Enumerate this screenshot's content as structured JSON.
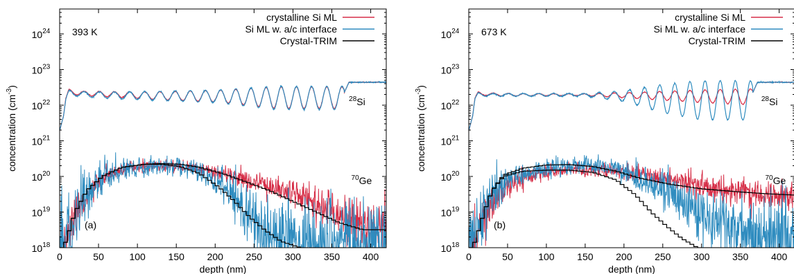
{
  "chart_data": [
    {
      "type": "line",
      "panel_label": "(a)",
      "temperature_label": "393 K",
      "xlabel": "depth (nm)",
      "ylabel_main": "concentration (cm",
      "ylabel_sup": "-3",
      "ylabel_end": ")",
      "xlim": [
        0,
        420
      ],
      "ylim": [
        1e+18,
        5e+24
      ],
      "yscale": "log",
      "x_ticks": [
        0,
        50,
        100,
        150,
        200,
        250,
        300,
        350,
        400
      ],
      "y_ticks": [
        {
          "value": 1e+18,
          "base": "10",
          "exp": "18"
        },
        {
          "value": 1e+19,
          "base": "10",
          "exp": "19"
        },
        {
          "value": 1e+20,
          "base": "10",
          "exp": "20"
        },
        {
          "value": 1e+21,
          "base": "10",
          "exp": "21"
        },
        {
          "value": 1e+22,
          "base": "10",
          "exp": "22"
        },
        {
          "value": 1e+23,
          "base": "10",
          "exp": "23"
        },
        {
          "value": 1e+24,
          "base": "10",
          "exp": "24"
        }
      ],
      "annotations": [
        {
          "sup": "28",
          "text": "Si",
          "x": 372,
          "y": 1.3e+22
        },
        {
          "sup": "70",
          "text": "Ge",
          "x": 375,
          "y": 8e+19
        }
      ],
      "legend_position": "top-right",
      "series": [
        {
          "name": "crystalline Si ML",
          "color": "#d62f48",
          "noise": 0.12,
          "points": [
            [
              0,
              1.9e+21
            ],
            [
              5,
              5e+21
            ],
            [
              8,
              1.6e+22
            ],
            [
              12,
              2.6e+22
            ],
            [
              20,
              2.3e+22
            ],
            [
              40,
              2.2e+22
            ],
            [
              80,
              2.1e+22
            ],
            [
              120,
              2e+22
            ],
            [
              160,
              2e+22
            ],
            [
              200,
              2e+22
            ],
            [
              240,
              2e+22
            ],
            [
              280,
              2e+22
            ],
            [
              320,
              2e+22
            ],
            [
              365,
              2e+22
            ],
            [
              372,
              4.4e+22
            ],
            [
              420,
              4.4e+22
            ]
          ],
          "osc_period": 19.5,
          "osc_amp": [
            [
              10,
              0.1
            ],
            [
              100,
              0.18
            ],
            [
              200,
              0.32
            ],
            [
              280,
              0.6
            ],
            [
              365,
              0.6
            ]
          ],
          "ge_points": [
            [
              0,
              5e+17
            ],
            [
              10,
              2e+18
            ],
            [
              20,
              1e+19
            ],
            [
              40,
              4e+19
            ],
            [
              60,
              1e+20
            ],
            [
              90,
              1.7e+20
            ],
            [
              120,
              2e+20
            ],
            [
              150,
              1.95e+20
            ],
            [
              180,
              1.6e+20
            ],
            [
              210,
              1.2e+20
            ],
            [
              250,
              7e+19
            ],
            [
              290,
              4e+19
            ],
            [
              330,
              1.8e+19
            ],
            [
              370,
              7e+18
            ],
            [
              400,
              4e+18
            ],
            [
              420,
              3e+18
            ]
          ]
        },
        {
          "name": "Si ML w. a/c interface",
          "color": "#2f8cbf",
          "noise": 0.18,
          "points": [
            [
              0,
              1.9e+21
            ],
            [
              5,
              5e+21
            ],
            [
              8,
              1.5e+22
            ],
            [
              12,
              2.4e+22
            ],
            [
              20,
              2.2e+22
            ],
            [
              40,
              2.1e+22
            ],
            [
              80,
              2e+22
            ],
            [
              120,
              2e+22
            ],
            [
              160,
              2e+22
            ],
            [
              200,
              2e+22
            ],
            [
              240,
              2e+22
            ],
            [
              280,
              2e+22
            ],
            [
              320,
              2e+22
            ],
            [
              365,
              2e+22
            ],
            [
              372,
              4.4e+22
            ],
            [
              420,
              4.4e+22
            ]
          ],
          "osc_period": 19.5,
          "osc_amp": [
            [
              10,
              0.12
            ],
            [
              100,
              0.22
            ],
            [
              200,
              0.35
            ],
            [
              280,
              0.65
            ],
            [
              365,
              0.65
            ]
          ],
          "ge_points": [
            [
              0,
              5e+17
            ],
            [
              10,
              2e+18
            ],
            [
              20,
              1e+19
            ],
            [
              40,
              4e+19
            ],
            [
              60,
              1e+20
            ],
            [
              90,
              1.7e+20
            ],
            [
              120,
              2e+20
            ],
            [
              150,
              1.9e+20
            ],
            [
              180,
              1.3e+20
            ],
            [
              200,
              7e+19
            ],
            [
              220,
              3e+19
            ],
            [
              240,
              1.2e+19
            ],
            [
              260,
              3e+18
            ],
            [
              290,
              1.5e+18
            ],
            [
              320,
              1.2e+18
            ],
            [
              360,
              1.1e+18
            ],
            [
              420,
              1e+18
            ]
          ]
        },
        {
          "name": "Crystal-TRIM",
          "color": "#000000",
          "noise": 0,
          "points": [],
          "ge_points": [
            [
              0,
              5e+17
            ],
            [
              10,
              2e+18
            ],
            [
              20,
              1e+19
            ],
            [
              35,
              4e+19
            ],
            [
              55,
              1e+20
            ],
            [
              80,
              1.8e+20
            ],
            [
              110,
              2.2e+20
            ],
            [
              130,
              2.3e+20
            ],
            [
              155,
              2.2e+20
            ],
            [
              180,
              1.8e+20
            ],
            [
              210,
              1.2e+20
            ],
            [
              240,
              7e+19
            ],
            [
              270,
              4e+19
            ],
            [
              300,
              2e+19
            ],
            [
              330,
              1e+19
            ],
            [
              360,
              5e+18
            ],
            [
              390,
              3.2e+18
            ],
            [
              420,
              3.2e+18
            ]
          ],
          "ge_points2": [
            [
              0,
              5e+17
            ],
            [
              10,
              2e+18
            ],
            [
              20,
              1e+19
            ],
            [
              35,
              4e+19
            ],
            [
              55,
              1e+20
            ],
            [
              80,
              1.8e+20
            ],
            [
              110,
              2.2e+20
            ],
            [
              130,
              2.2e+20
            ],
            [
              155,
              1.9e+20
            ],
            [
              180,
              1.2e+20
            ],
            [
              205,
              5e+19
            ],
            [
              225,
              2e+19
            ],
            [
              245,
              7e+18
            ],
            [
              265,
              3e+18
            ],
            [
              285,
              1.5e+18
            ],
            [
              310,
              1e+18
            ]
          ]
        }
      ]
    },
    {
      "type": "line",
      "panel_label": "(b)",
      "temperature_label": "673 K",
      "xlabel": "depth (nm)",
      "ylabel_main": "concentration (cm",
      "ylabel_sup": "-3",
      "ylabel_end": ")",
      "xlim": [
        0,
        420
      ],
      "ylim": [
        1e+18,
        5e+24
      ],
      "yscale": "log",
      "x_ticks": [
        0,
        50,
        100,
        150,
        200,
        250,
        300,
        350,
        400
      ],
      "y_ticks": [
        {
          "value": 1e+18,
          "base": "10",
          "exp": "18"
        },
        {
          "value": 1e+19,
          "base": "10",
          "exp": "19"
        },
        {
          "value": 1e+20,
          "base": "10",
          "exp": "20"
        },
        {
          "value": 1e+21,
          "base": "10",
          "exp": "21"
        },
        {
          "value": 1e+22,
          "base": "10",
          "exp": "22"
        },
        {
          "value": 1e+23,
          "base": "10",
          "exp": "23"
        },
        {
          "value": 1e+24,
          "base": "10",
          "exp": "24"
        }
      ],
      "annotations": [
        {
          "sup": "28",
          "text": "Si",
          "x": 377,
          "y": 1.3e+22
        },
        {
          "sup": "70",
          "text": "Ge",
          "x": 382,
          "y": 8e+19
        }
      ],
      "legend_position": "top-right",
      "series": [
        {
          "name": "crystalline Si ML",
          "color": "#d62f48",
          "noise": 0.12,
          "points": [
            [
              0,
              1.9e+21
            ],
            [
              5,
              5e+21
            ],
            [
              8,
              1.6e+22
            ],
            [
              12,
              2.2e+22
            ],
            [
              20,
              2.1e+22
            ],
            [
              60,
              2e+22
            ],
            [
              120,
              2e+22
            ],
            [
              180,
              2e+22
            ],
            [
              220,
              2e+22
            ],
            [
              260,
              2e+22
            ],
            [
              300,
              2e+22
            ],
            [
              365,
              2e+22
            ],
            [
              372,
              4.4e+22
            ],
            [
              420,
              4.4e+22
            ]
          ],
          "osc_period": 19.5,
          "osc_amp": [
            [
              10,
              0.08
            ],
            [
              150,
              0.05
            ],
            [
              220,
              0.18
            ],
            [
              300,
              0.35
            ],
            [
              365,
              0.45
            ]
          ],
          "ge_points": [
            [
              0,
              5e+17
            ],
            [
              10,
              2e+18
            ],
            [
              20,
              8e+18
            ],
            [
              40,
              3e+19
            ],
            [
              60,
              7e+19
            ],
            [
              90,
              1.2e+20
            ],
            [
              130,
              1.6e+20
            ],
            [
              170,
              1.55e+20
            ],
            [
              210,
              1.2e+20
            ],
            [
              260,
              8e+19
            ],
            [
              300,
              5.5e+19
            ],
            [
              340,
              4e+19
            ],
            [
              380,
              3.2e+19
            ],
            [
              420,
              2.8e+19
            ]
          ]
        },
        {
          "name": "Si ML w. a/c interface",
          "color": "#2f8cbf",
          "noise": 0.18,
          "points": [
            [
              0,
              1.9e+21
            ],
            [
              5,
              5e+21
            ],
            [
              8,
              1.5e+22
            ],
            [
              12,
              2.1e+22
            ],
            [
              20,
              2e+22
            ],
            [
              60,
              2e+22
            ],
            [
              120,
              2e+22
            ],
            [
              180,
              2e+22
            ],
            [
              220,
              2e+22
            ],
            [
              260,
              2e+22
            ],
            [
              300,
              2e+22
            ],
            [
              365,
              2e+22
            ],
            [
              372,
              4.4e+22
            ],
            [
              420,
              4.4e+22
            ]
          ],
          "osc_period": 19.5,
          "osc_amp": [
            [
              10,
              0.08
            ],
            [
              150,
              0.08
            ],
            [
              200,
              0.3
            ],
            [
              250,
              0.8
            ],
            [
              300,
              1.1
            ],
            [
              365,
              1.1
            ]
          ],
          "ge_points": [
            [
              0,
              5e+17
            ],
            [
              10,
              3e+18
            ],
            [
              20,
              1.5e+19
            ],
            [
              40,
              5e+19
            ],
            [
              60,
              1e+20
            ],
            [
              90,
              1.5e+20
            ],
            [
              130,
              1.9e+20
            ],
            [
              160,
              1.95e+20
            ],
            [
              190,
              1.6e+20
            ],
            [
              220,
              9e+19
            ],
            [
              250,
              4e+19
            ],
            [
              280,
              1.5e+19
            ],
            [
              310,
              6e+18
            ],
            [
              340,
              3e+18
            ],
            [
              370,
              1.8e+18
            ],
            [
              400,
              1.3e+18
            ],
            [
              420,
              1.2e+18
            ]
          ]
        },
        {
          "name": "Crystal-TRIM",
          "color": "#000000",
          "noise": 0,
          "points": [],
          "ge_points": [
            [
              0,
              5e+17
            ],
            [
              10,
              2e+18
            ],
            [
              20,
              1e+19
            ],
            [
              30,
              4e+19
            ],
            [
              45,
              1.1e+20
            ],
            [
              70,
              1.7e+20
            ],
            [
              100,
              2.1e+20
            ],
            [
              130,
              2.15e+20
            ],
            [
              160,
              1.9e+20
            ],
            [
              190,
              1.4e+20
            ],
            [
              220,
              9e+19
            ],
            [
              260,
              6e+19
            ],
            [
              300,
              4.5e+19
            ],
            [
              340,
              3.8e+19
            ],
            [
              380,
              3.3e+19
            ],
            [
              420,
              3e+19
            ]
          ],
          "ge_points2": [
            [
              0,
              5e+17
            ],
            [
              10,
              2e+18
            ],
            [
              20,
              1e+19
            ],
            [
              30,
              4e+19
            ],
            [
              45,
              1e+20
            ],
            [
              70,
              1.4e+20
            ],
            [
              100,
              1.5e+20
            ],
            [
              130,
              1.5e+20
            ],
            [
              160,
              1.3e+20
            ],
            [
              190,
              8e+19
            ],
            [
              215,
              3e+19
            ],
            [
              235,
              1e+19
            ],
            [
              255,
              4e+18
            ],
            [
              275,
              1.8e+18
            ],
            [
              295,
              1e+18
            ]
          ]
        }
      ]
    }
  ]
}
